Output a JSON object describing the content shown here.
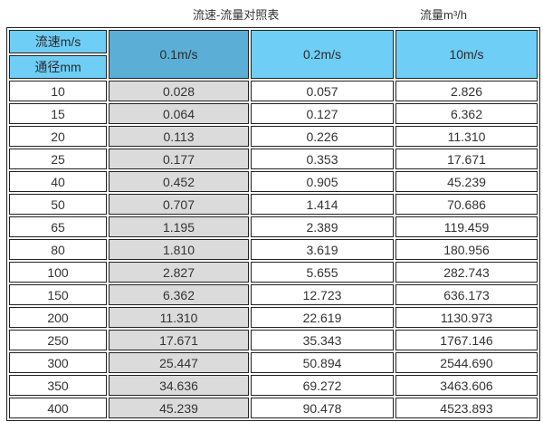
{
  "title": {
    "left": "流速-流量对照表",
    "right": "流量m³/h"
  },
  "table": {
    "corner_top": "流速m/s",
    "corner_bottom": "通径mm",
    "speed_cols": [
      "0.1m/s",
      "0.2m/s",
      "10m/s"
    ],
    "rows": [
      [
        "10",
        "0.028",
        "0.057",
        "2.826"
      ],
      [
        "15",
        "0.064",
        "0.127",
        "6.362"
      ],
      [
        "20",
        "0.113",
        "0.226",
        "11.310"
      ],
      [
        "25",
        "0.177",
        "0.353",
        "17.671"
      ],
      [
        "40",
        "0.452",
        "0.905",
        "45.239"
      ],
      [
        "50",
        "0.707",
        "1.414",
        "70.686"
      ],
      [
        "65",
        "1.195",
        "2.389",
        "119.459"
      ],
      [
        "80",
        "1.810",
        "3.619",
        "180.956"
      ],
      [
        "100",
        "2.827",
        "5.655",
        "282.743"
      ],
      [
        "150",
        "6.362",
        "12.723",
        "636.173"
      ],
      [
        "200",
        "11.310",
        "22.619",
        "1130.973"
      ],
      [
        "250",
        "17.671",
        "35.343",
        "1767.146"
      ],
      [
        "300",
        "25.447",
        "50.894",
        "2544.690"
      ],
      [
        "350",
        "34.636",
        "69.272",
        "3463.606"
      ],
      [
        "400",
        "45.239",
        "90.478",
        "4523.893"
      ]
    ]
  },
  "colors": {
    "header_light_blue": "#6FCEF5",
    "header_dark_blue": "#5BAFD6",
    "gray_column": "#DBDBDB",
    "border": "#222222",
    "text": "#333333"
  },
  "chart_data": {
    "type": "table",
    "title": "流速-流量对照表",
    "right_label": "流量m³/h",
    "col_header": "流速m/s",
    "row_header": "通径mm",
    "columns": [
      "0.1m/s",
      "0.2m/s",
      "10m/s"
    ],
    "diameters_mm": [
      10,
      15,
      20,
      25,
      40,
      50,
      65,
      80,
      100,
      150,
      200,
      250,
      300,
      350,
      400
    ],
    "flow_m3h_by_speed": {
      "0.1m/s": [
        0.028,
        0.064,
        0.113,
        0.177,
        0.452,
        0.707,
        1.195,
        1.81,
        2.827,
        6.362,
        11.31,
        17.671,
        25.447,
        34.636,
        45.239
      ],
      "0.2m/s": [
        0.057,
        0.127,
        0.226,
        0.353,
        0.905,
        1.414,
        2.389,
        3.619,
        5.655,
        12.723,
        22.619,
        35.343,
        50.894,
        69.272,
        90.478
      ],
      "10m/s": [
        2.826,
        6.362,
        11.31,
        17.671,
        45.239,
        70.686,
        119.459,
        180.956,
        282.743,
        636.173,
        1130.973,
        1767.146,
        2544.69,
        3463.606,
        4523.893
      ]
    }
  }
}
